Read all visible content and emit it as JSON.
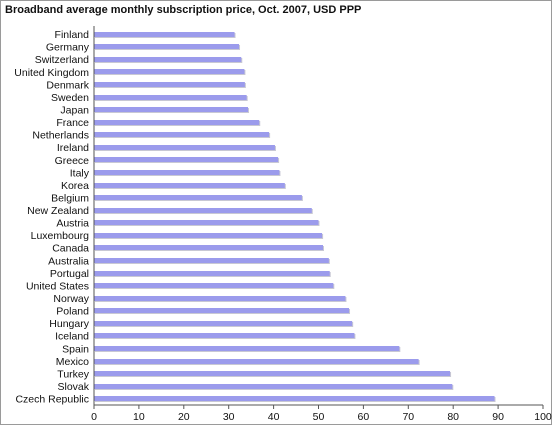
{
  "chart_data": {
    "type": "bar",
    "orientation": "horizontal",
    "title": "Broadband average monthly subscription price, Oct. 2007, USD PPP",
    "categories": [
      "Finland",
      "Germany",
      "Switzerland",
      "United Kingdom",
      "Denmark",
      "Sweden",
      "Japan",
      "France",
      "Netherlands",
      "Ireland",
      "Greece",
      "Italy",
      "Korea",
      "Belgium",
      "New Zealand",
      "Austria",
      "Luxembourg",
      "Canada",
      "Australia",
      "Portugal",
      "United States",
      "Norway",
      "Poland",
      "Hungary",
      "Iceland",
      "Spain",
      "Mexico",
      "Turkey",
      "Slovak",
      "Czech Republic"
    ],
    "values": [
      31.3,
      32.3,
      32.8,
      33.5,
      33.6,
      34.0,
      34.3,
      36.8,
      39.0,
      40.3,
      41.0,
      41.3,
      42.5,
      46.3,
      48.5,
      50.0,
      50.8,
      51.0,
      52.3,
      52.5,
      53.3,
      56.0,
      56.8,
      57.5,
      58.0,
      68.0,
      72.3,
      79.3,
      79.8,
      89.2
    ],
    "xlim": [
      0,
      100
    ],
    "xticks": [
      0,
      10,
      20,
      30,
      40,
      50,
      60,
      70,
      80,
      90,
      100
    ],
    "bar_color": "#9b9bec",
    "grid": false,
    "legend": "none"
  }
}
